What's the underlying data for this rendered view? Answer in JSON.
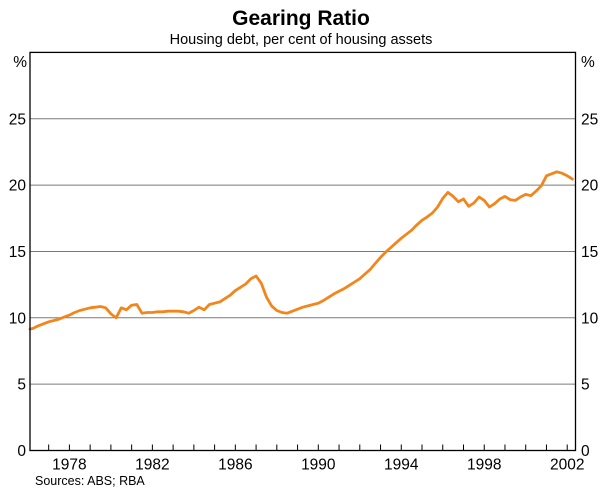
{
  "chart_data": {
    "type": "line",
    "title": "Gearing Ratio",
    "subtitle": "Housing debt, per cent of housing assets",
    "source_note": "Sources: ABS; RBA",
    "unit_label": "%",
    "ylim": [
      0,
      30
    ],
    "yticks_labeled": [
      0,
      5,
      10,
      15,
      20,
      25
    ],
    "gridlines": [
      5,
      10,
      15,
      20,
      25
    ],
    "grid": "horizontal",
    "legend_position": "none",
    "x_domain": [
      1976.1,
      2002.4
    ],
    "x_ticks": [
      1977,
      1978,
      1979,
      1980,
      1981,
      1982,
      1983,
      1984,
      1985,
      1986,
      1987,
      1988,
      1989,
      1990,
      1991,
      1992,
      1993,
      1994,
      1995,
      1996,
      1997,
      1998,
      1999,
      2000,
      2001,
      2002
    ],
    "x_labels": [
      1978,
      1982,
      1986,
      1990,
      1994,
      1998,
      2002
    ],
    "colors": {
      "line": "#f2861d",
      "grid": "#7a7a7a",
      "axis": "#000000",
      "text": "#000000",
      "background": "#ffffff"
    },
    "series": [
      {
        "name": "Housing debt, per cent of housing assets",
        "color": "#f2861d",
        "points": [
          [
            1976.1,
            9.15
          ],
          [
            1976.25,
            9.2
          ],
          [
            1976.5,
            9.4
          ],
          [
            1976.75,
            9.55
          ],
          [
            1977.0,
            9.7
          ],
          [
            1977.25,
            9.8
          ],
          [
            1977.5,
            9.9
          ],
          [
            1977.75,
            10.05
          ],
          [
            1978.0,
            10.2
          ],
          [
            1978.25,
            10.4
          ],
          [
            1978.5,
            10.55
          ],
          [
            1978.75,
            10.65
          ],
          [
            1979.0,
            10.75
          ],
          [
            1979.25,
            10.8
          ],
          [
            1979.5,
            10.85
          ],
          [
            1979.75,
            10.75
          ],
          [
            1980.0,
            10.3
          ],
          [
            1980.25,
            10.0
          ],
          [
            1980.5,
            10.75
          ],
          [
            1980.75,
            10.6
          ],
          [
            1981.0,
            10.95
          ],
          [
            1981.25,
            11.0
          ],
          [
            1981.5,
            10.35
          ],
          [
            1981.75,
            10.4
          ],
          [
            1982.0,
            10.4
          ],
          [
            1982.25,
            10.45
          ],
          [
            1982.5,
            10.45
          ],
          [
            1982.75,
            10.5
          ],
          [
            1983.0,
            10.5
          ],
          [
            1983.25,
            10.5
          ],
          [
            1983.5,
            10.45
          ],
          [
            1983.75,
            10.35
          ],
          [
            1984.0,
            10.55
          ],
          [
            1984.25,
            10.8
          ],
          [
            1984.5,
            10.6
          ],
          [
            1984.75,
            11.0
          ],
          [
            1985.0,
            11.1
          ],
          [
            1985.25,
            11.2
          ],
          [
            1985.5,
            11.45
          ],
          [
            1985.75,
            11.7
          ],
          [
            1986.0,
            12.05
          ],
          [
            1986.25,
            12.3
          ],
          [
            1986.5,
            12.55
          ],
          [
            1986.75,
            12.95
          ],
          [
            1987.0,
            13.15
          ],
          [
            1987.25,
            12.6
          ],
          [
            1987.5,
            11.55
          ],
          [
            1987.75,
            10.9
          ],
          [
            1988.0,
            10.55
          ],
          [
            1988.25,
            10.4
          ],
          [
            1988.5,
            10.35
          ],
          [
            1988.75,
            10.5
          ],
          [
            1989.0,
            10.65
          ],
          [
            1989.25,
            10.8
          ],
          [
            1989.5,
            10.9
          ],
          [
            1989.75,
            11.0
          ],
          [
            1990.0,
            11.1
          ],
          [
            1990.25,
            11.3
          ],
          [
            1990.5,
            11.55
          ],
          [
            1990.75,
            11.8
          ],
          [
            1991.0,
            12.0
          ],
          [
            1991.25,
            12.2
          ],
          [
            1991.5,
            12.45
          ],
          [
            1991.75,
            12.7
          ],
          [
            1992.0,
            12.95
          ],
          [
            1992.25,
            13.3
          ],
          [
            1992.5,
            13.65
          ],
          [
            1992.75,
            14.1
          ],
          [
            1993.0,
            14.55
          ],
          [
            1993.25,
            14.95
          ],
          [
            1993.5,
            15.3
          ],
          [
            1993.75,
            15.65
          ],
          [
            1994.0,
            16.0
          ],
          [
            1994.25,
            16.3
          ],
          [
            1994.5,
            16.6
          ],
          [
            1994.75,
            17.0
          ],
          [
            1995.0,
            17.35
          ],
          [
            1995.25,
            17.6
          ],
          [
            1995.5,
            17.9
          ],
          [
            1995.75,
            18.35
          ],
          [
            1996.0,
            19.0
          ],
          [
            1996.25,
            19.45
          ],
          [
            1996.5,
            19.15
          ],
          [
            1996.75,
            18.75
          ],
          [
            1997.0,
            18.95
          ],
          [
            1997.25,
            18.4
          ],
          [
            1997.5,
            18.65
          ],
          [
            1997.75,
            19.1
          ],
          [
            1998.0,
            18.85
          ],
          [
            1998.25,
            18.35
          ],
          [
            1998.5,
            18.6
          ],
          [
            1998.75,
            18.95
          ],
          [
            1999.0,
            19.15
          ],
          [
            1999.25,
            18.9
          ],
          [
            1999.5,
            18.85
          ],
          [
            1999.75,
            19.1
          ],
          [
            2000.0,
            19.3
          ],
          [
            2000.25,
            19.2
          ],
          [
            2000.5,
            19.55
          ],
          [
            2000.75,
            19.95
          ],
          [
            2001.0,
            20.7
          ],
          [
            2001.25,
            20.85
          ],
          [
            2001.5,
            21.0
          ],
          [
            2001.75,
            20.9
          ],
          [
            2002.0,
            20.7
          ],
          [
            2002.25,
            20.45
          ]
        ]
      }
    ]
  }
}
